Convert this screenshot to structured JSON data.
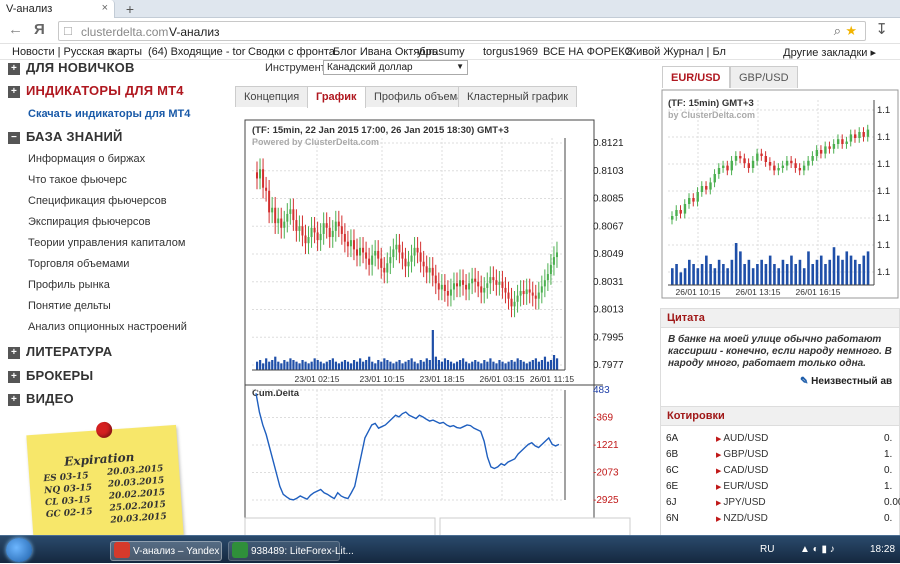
{
  "browser": {
    "tab_title": "V-анализ",
    "tab_close": "×",
    "new_tab": "+",
    "url_host": "clusterdelta.com",
    "url_path": "V-анализ",
    "bookmarks": [
      "Новости | Русская в",
      "карты",
      "(64) Входящие - tor",
      "Сводки с фронта",
      "Блог Ивана Октябрь",
      "yurasumy",
      "torgus1969",
      "ВСЕ НА ФОРЕКС",
      "Живой Журнал | Бл"
    ],
    "other_bookmarks": "Другие закладки ▸"
  },
  "sidebar": {
    "sections": [
      {
        "label": "ДЛЯ НОВИЧКОВ",
        "icon": "+"
      },
      {
        "label": "ИНДИКАТОРЫ ДЛЯ МТ4",
        "icon": "+"
      },
      {
        "label": "БАЗА ЗНАНИЙ",
        "icon": "−"
      },
      {
        "label": "ЛИТЕРАТУРА",
        "icon": "+"
      },
      {
        "label": "БРОКЕРЫ",
        "icon": "+"
      },
      {
        "label": "ВИДЕО",
        "icon": "+"
      }
    ],
    "mt4_link": "Скачать индикаторы для МТ4",
    "knowledge_items": [
      "Информация о биржах",
      "Что такое фьючерс",
      "Спецификация фьючерсов",
      "Экспирация фьючерсов",
      "Теории управления капиталом",
      "Торговля объемами",
      "Профиль рынка",
      "Понятие дельты",
      "Анализ опционных настроений"
    ],
    "note": {
      "title": "Expiration",
      "rows": [
        {
          "l": "ES 03-15",
          "r": "20.03.2015"
        },
        {
          "l": "NQ 03-15",
          "r": "20.03.2015"
        },
        {
          "l": "CL 03-15",
          "r": "20.02.2015"
        },
        {
          "l": "GC 02-15",
          "r": "25.02.2015"
        },
        {
          "l": "",
          "r": "20.03.2015"
        }
      ]
    }
  },
  "main": {
    "instrument_label": "Инструмент:",
    "instrument_value": "Канадский доллар",
    "tabs": [
      "Концепция",
      "График",
      "Профиль объема",
      "Кластерный график"
    ],
    "active_tab": "График"
  },
  "chart_data": [
    {
      "type": "candlestick",
      "title": "(TF: 15min, 22 Jan 2015 17:00, 26 Jan 2015 18:30) GMT+3",
      "subtitle": "Powered by ClusterDelta.com",
      "y_ticks": [
        "0.8121",
        "0.8103",
        "0.8085",
        "0.8067",
        "0.8049",
        "0.8031",
        "0.8013",
        "0.7995",
        "0.7977"
      ],
      "ylim": [
        0.7977,
        0.8121
      ],
      "x_ticks": [
        "23/01 02:15",
        "23/01 10:15",
        "23/01 18:15",
        "26/01 03:15",
        "26/01 11:15"
      ],
      "close": [
        0.8098,
        0.8104,
        0.8092,
        0.809,
        0.8076,
        0.8079,
        0.8069,
        0.8072,
        0.8066,
        0.807,
        0.8075,
        0.8078,
        0.8071,
        0.8064,
        0.8067,
        0.8061,
        0.8056,
        0.806,
        0.8066,
        0.8063,
        0.8058,
        0.8062,
        0.8069,
        0.8066,
        0.806,
        0.8064,
        0.807,
        0.8067,
        0.8062,
        0.8057,
        0.8054,
        0.8058,
        0.8052,
        0.8048,
        0.8053,
        0.805,
        0.8046,
        0.8042,
        0.8048,
        0.8051,
        0.8046,
        0.804,
        0.8037,
        0.8043,
        0.8047,
        0.8052,
        0.8055,
        0.805,
        0.8046,
        0.8041,
        0.8044,
        0.8048,
        0.8053,
        0.805,
        0.8044,
        0.8041,
        0.8037,
        0.804,
        0.8035,
        0.803,
        0.8026,
        0.8029,
        0.8025,
        0.8022,
        0.8026,
        0.803,
        0.8028,
        0.8032,
        0.8029,
        0.8026,
        0.803,
        0.8033,
        0.8031,
        0.8028,
        0.8024,
        0.8027,
        0.803,
        0.8034,
        0.8032,
        0.8029,
        0.8031,
        0.8027,
        0.8024,
        0.802,
        0.8015,
        0.8018,
        0.8022,
        0.8025,
        0.8023,
        0.8026,
        0.8024,
        0.8022,
        0.802,
        0.8024,
        0.8028,
        0.8032,
        0.8036,
        0.8042,
        0.8047,
        0.805
      ],
      "volume_note": "volume bars",
      "volumes": [
        5,
        6,
        4,
        7,
        5,
        6,
        8,
        5,
        4,
        6,
        5,
        7,
        6,
        5,
        4,
        6,
        5,
        4,
        5,
        7,
        6,
        5,
        4,
        5,
        6,
        7,
        5,
        4,
        5,
        6,
        5,
        4,
        6,
        5,
        7,
        5,
        6,
        8,
        5,
        4,
        6,
        5,
        7,
        6,
        5,
        4,
        5,
        6,
        4,
        5,
        6,
        7,
        5,
        4,
        6,
        5,
        7,
        6,
        24,
        8,
        6,
        5,
        7,
        6,
        5,
        4,
        5,
        6,
        7,
        5,
        4,
        5,
        6,
        5,
        4,
        6,
        5,
        7,
        5,
        4,
        6,
        5,
        4,
        5,
        6,
        5,
        7,
        6,
        5,
        4,
        5,
        6,
        7,
        5,
        6,
        8,
        5,
        6,
        9,
        7
      ]
    },
    {
      "type": "line",
      "title": "Cum.Delta",
      "y_ticks": [
        "483",
        "-369",
        "-1221",
        "-2073",
        "-2925"
      ],
      "ylim": [
        -2925,
        483
      ],
      "values": [
        383,
        -200,
        -600,
        -900,
        -1300,
        -1700,
        -2100,
        -2500,
        -2750,
        -2830,
        -2900,
        -2920,
        -2870,
        -2800,
        -2850,
        -2900,
        -2780,
        -2700,
        -2650,
        -2600,
        -2700,
        -2750,
        -2820,
        -2880,
        -2700,
        -2800,
        -2850,
        -2880,
        -2700,
        -2500,
        -2000,
        -1500,
        -1000,
        -800,
        -600,
        -550,
        -700,
        -650,
        -600,
        -500,
        -400,
        -300,
        -350,
        -250,
        -200,
        -300,
        -350,
        -400,
        -300,
        -350,
        -420,
        -480,
        -450,
        -500,
        -550,
        -520,
        -600,
        -650,
        -620,
        -680,
        -700,
        -650,
        -600,
        -620,
        -700,
        -750,
        -800,
        -1100,
        -1600,
        -1900,
        -1950,
        -1900,
        -1800,
        -1850,
        -1750,
        -1700,
        -1650,
        -1500,
        -1400,
        -1300,
        -1200,
        -1150,
        -1250,
        -1300,
        -1200,
        -1100,
        -1000,
        -1200,
        -1250,
        -1200
      ]
    },
    {
      "type": "candlestick",
      "title": "(TF: 15min) GMT+3",
      "subtitle": "by ClusterDelta.com",
      "y_ticks": [
        "1.1",
        "1.1",
        "1.1",
        "1.1",
        "1.1",
        "1.1",
        "1.1"
      ],
      "x_ticks": [
        "26/01 10:15",
        "26/01 13:15",
        "26/01 16:15"
      ],
      "close": [
        0.2,
        0.25,
        0.22,
        0.3,
        0.35,
        0.32,
        0.4,
        0.45,
        0.42,
        0.48,
        0.55,
        0.6,
        0.62,
        0.58,
        0.66,
        0.7,
        0.68,
        0.64,
        0.6,
        0.66,
        0.72,
        0.7,
        0.65,
        0.62,
        0.58,
        0.6,
        0.62,
        0.66,
        0.64,
        0.6,
        0.58,
        0.62,
        0.66,
        0.7,
        0.75,
        0.72,
        0.78,
        0.76,
        0.8,
        0.84,
        0.8,
        0.82,
        0.88,
        0.85,
        0.9,
        0.86,
        0.92
      ],
      "volumes": [
        4,
        5,
        3,
        4,
        6,
        5,
        4,
        5,
        7,
        5,
        4,
        6,
        5,
        4,
        6,
        10,
        8,
        5,
        6,
        4,
        5,
        6,
        5,
        7,
        5,
        4,
        6,
        5,
        7,
        5,
        6,
        4,
        8,
        5,
        6,
        7,
        5,
        6,
        9,
        7,
        6,
        8,
        7,
        6,
        5,
        7,
        8
      ]
    }
  ],
  "right": {
    "tabs": [
      "EUR/USD",
      "GBP/USD"
    ],
    "active_tab": "EUR/USD",
    "quote_header": "Цитата",
    "quote_text": "В банке на моей улице обычно работают кассирши - конечно, если народу немного. В народу много, работает только одна.",
    "quote_author": "Неизвестный ав",
    "quotes_header": "Котировки",
    "quotes": [
      {
        "sym": "6A",
        "pair": "AUD/USD",
        "val": "0."
      },
      {
        "sym": "6B",
        "pair": "GBP/USD",
        "val": "1."
      },
      {
        "sym": "6C",
        "pair": "CAD/USD",
        "val": "0."
      },
      {
        "sym": "6E",
        "pair": "EUR/USD",
        "val": "1."
      },
      {
        "sym": "6J",
        "pair": "JPY/USD",
        "val": "0.00"
      },
      {
        "sym": "6N",
        "pair": "NZD/USD",
        "val": "0."
      }
    ]
  },
  "taskbar": {
    "apps": [
      {
        "label": "V-анализ – Yandex",
        "color": "#d63a2b"
      },
      {
        "label": "938489: LiteForex-Lit...",
        "color": "#2f8f3a"
      }
    ],
    "lang": "RU",
    "time": "18:28"
  },
  "colors": {
    "bull": "#4caf50",
    "bear": "#d32f2f",
    "volume": "#1f4fa8",
    "delta": "#1f5fbf",
    "accent": "#b01820"
  }
}
